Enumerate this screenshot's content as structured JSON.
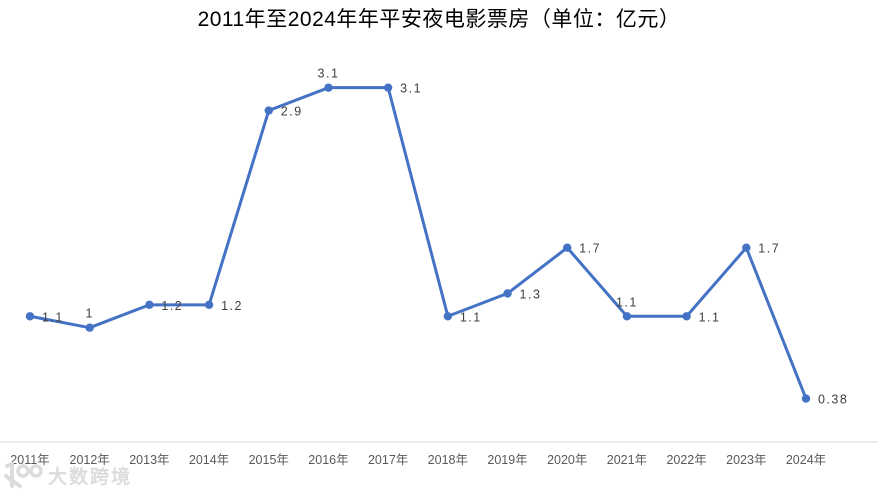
{
  "title": "2011年至2024年年平安夜电影票房（单位：亿元）",
  "watermark": {
    "label": "大数跨境"
  },
  "colors": {
    "line": "#4472C4",
    "marker": "#4472C4",
    "data_label": "#404040",
    "axis_label": "#595959",
    "axis_line": "#D9D9D9",
    "background": "#FFFFFF",
    "watermark": "#DCDCDC"
  },
  "chart_data": {
    "type": "line",
    "title": "2011年至2024年年平安夜电影票房（单位：亿元）",
    "unit": "亿元",
    "categories": [
      "2011年",
      "2012年",
      "2013年",
      "2014年",
      "2015年",
      "2016年",
      "2017年",
      "2018年",
      "2019年",
      "2020年",
      "2021年",
      "2022年",
      "2023年",
      "2024年"
    ],
    "series": [
      {
        "name": "平安夜电影票房",
        "values": [
          1.1,
          1,
          1.2,
          1.2,
          2.9,
          3.1,
          3.1,
          1.1,
          1.3,
          1.7,
          1.1,
          1.1,
          1.7,
          0.38
        ]
      }
    ],
    "data_labels": [
      "1.1",
      "1",
      "1.2",
      "1.2",
      "2.9",
      "3.1",
      "3.1",
      "1.1",
      "1.3",
      "1.7",
      "1.1",
      "1.1",
      "1.7",
      "0.38"
    ],
    "label_placements": [
      "right",
      "above",
      "right",
      "right",
      "right",
      "above",
      "right",
      "right",
      "right",
      "right",
      "above",
      "right",
      "right",
      "right"
    ],
    "xlabel": "",
    "ylabel": "",
    "ylim": [
      0,
      3.35
    ],
    "grid": false,
    "legend": false
  }
}
